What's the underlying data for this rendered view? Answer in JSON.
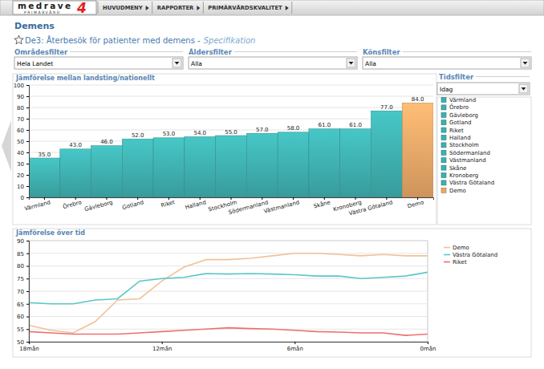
{
  "nav": {
    "logo": {
      "text": "medrave",
      "number": "4",
      "subtitle": "PRIMÄRVÅRD"
    },
    "menu": [
      "HUVUDMENY",
      "RAPPORTER",
      "PRIMÄRVÅRDSKVALITET"
    ]
  },
  "header": {
    "title": "Demens",
    "subtitle": "De3: Återbesök för patienter med demens -",
    "subtitle_link": "Specifikation"
  },
  "filters": [
    {
      "label": "Områdesfilter",
      "value": "Hela Landet"
    },
    {
      "label": "Åldersfilter",
      "value": "Alla"
    },
    {
      "label": "Könsfilter",
      "value": "Alla"
    }
  ],
  "time_filter": {
    "label": "Tidsfilter",
    "value": "Idag"
  },
  "chart_data": [
    {
      "type": "bar",
      "title": "Jämförelse mellan landsting/nationellt",
      "categories": [
        "Värmland",
        "Örebro",
        "Gävleborg",
        "Gotland",
        "Riket",
        "Halland",
        "Stockholm",
        "Södermanland",
        "Västmanland",
        "Skåne",
        "Kronoberg",
        "Västra Götaland",
        "Demo"
      ],
      "values": [
        35,
        43,
        46,
        52,
        53,
        54,
        55,
        57,
        58,
        61,
        61,
        77,
        84
      ],
      "value_labels": [
        "35.0",
        "43.0",
        "46.0",
        "52.0",
        "53.0",
        "54.0",
        "55.0",
        "57.0",
        "58.0",
        "61.0",
        "61.0",
        "77.0",
        "84.0"
      ],
      "colors": [
        "#3fb0b0",
        "#3fb0b0",
        "#3fb0b0",
        "#3fb0b0",
        "#3fb0b0",
        "#3fb0b0",
        "#3fb0b0",
        "#3fb0b0",
        "#3fb0b0",
        "#3fb0b0",
        "#3fb0b0",
        "#3fb0b0",
        "#e9a868"
      ],
      "ylim": [
        0,
        100
      ],
      "yticks": [
        0,
        10,
        20,
        30,
        40,
        50,
        60,
        70,
        80,
        90,
        100
      ],
      "grid": true,
      "data_labels": true,
      "legend": "right"
    },
    {
      "type": "line",
      "title": "Jämförelse över tid",
      "x": [
        18,
        17,
        16,
        15,
        14,
        13,
        12,
        11,
        10,
        9,
        8,
        7,
        6,
        5,
        4,
        3,
        2,
        1,
        0
      ],
      "xlim": [
        18,
        0
      ],
      "xticks": [
        {
          "value": 18,
          "label": "18mån"
        },
        {
          "value": 12,
          "label": "12mån"
        },
        {
          "value": 6,
          "label": "6mån"
        },
        {
          "value": 0,
          "label": "0mån"
        }
      ],
      "ylim": [
        50,
        90
      ],
      "yticks": [
        50,
        55,
        60,
        65,
        70,
        75,
        80,
        85,
        90
      ],
      "grid": true,
      "legend": "right",
      "series": [
        {
          "name": "Demo",
          "color": "#f2c196",
          "values": [
            56.5,
            54.5,
            53.5,
            58,
            66.5,
            67,
            74,
            79.5,
            82.5,
            82.5,
            83,
            84,
            85,
            85,
            84.5,
            84,
            84.5,
            84,
            84
          ]
        },
        {
          "name": "Västra Götaland",
          "color": "#5cc6c6",
          "values": [
            65.5,
            65,
            65,
            66.5,
            67,
            74,
            75,
            75.5,
            77,
            76.8,
            77,
            76.8,
            76.5,
            76,
            76,
            75,
            75.5,
            76,
            77.5
          ]
        },
        {
          "name": "Riket",
          "color": "#ee6f6f",
          "values": [
            54,
            53.5,
            53,
            53,
            53,
            53.5,
            54,
            54.5,
            55,
            55.5,
            55.2,
            55,
            54.5,
            54,
            53.8,
            53.5,
            53.5,
            52.5,
            53
          ]
        }
      ]
    }
  ]
}
